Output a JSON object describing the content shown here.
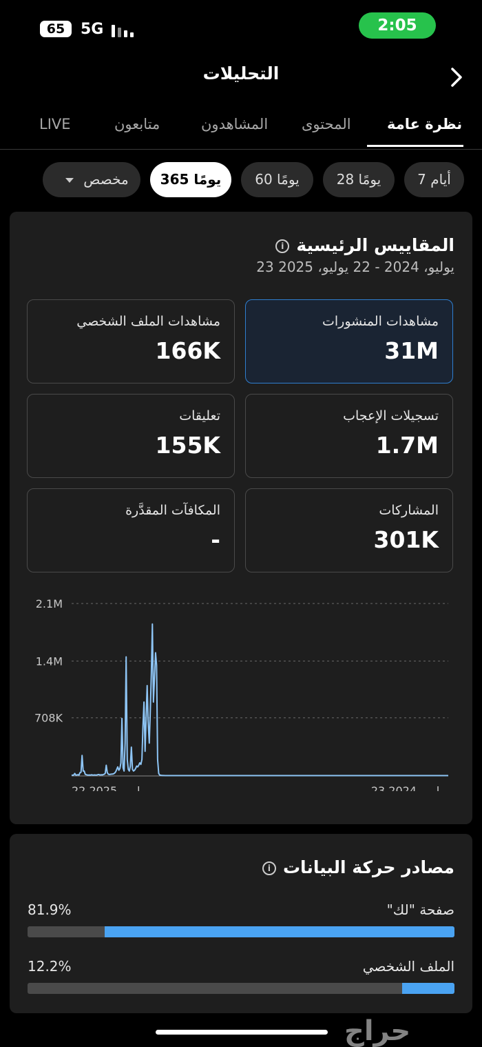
{
  "status_bar": {
    "battery": "65",
    "network": "5G",
    "time": "2:05"
  },
  "header": {
    "title": "التحليلات"
  },
  "tabs": [
    {
      "label": "نظرة عامة",
      "active": true
    },
    {
      "label": "المحتوى"
    },
    {
      "label": "المشاهدون"
    },
    {
      "label": "متابعون"
    },
    {
      "label": "LIVE"
    }
  ],
  "ranges": [
    {
      "label": "7 أيام"
    },
    {
      "label": "28 يومًا"
    },
    {
      "label": "60 يومًا"
    },
    {
      "label": "365 يومًا",
      "active": true
    },
    {
      "label": "مخصص"
    }
  ],
  "key_metrics": {
    "title": "المقاييس الرئيسية",
    "date_range": "23 يوليو، 2024 - 22 يوليو، 2025",
    "items": [
      {
        "label": "مشاهدات المنشورات",
        "value": "31M",
        "selected": true
      },
      {
        "label": "مشاهدات الملف الشخصي",
        "value": "166K"
      },
      {
        "label": "تسجيلات الإعجاب",
        "value": "1.7M"
      },
      {
        "label": "تعليقات",
        "value": "155K"
      },
      {
        "label": "المشاركات",
        "value": "301K"
      },
      {
        "label": "المكافآت المقدَّرة",
        "value": "-"
      }
    ]
  },
  "chart_data": {
    "type": "line",
    "series": [
      {
        "values": [
          8000,
          9000,
          10000,
          30000,
          10000,
          12000,
          15000,
          10000,
          40000,
          45000,
          250000,
          60000,
          60000,
          20000,
          15000,
          12000,
          10000,
          12000,
          10000,
          14000,
          12000,
          10000,
          13000,
          10000,
          12000,
          15000,
          18000,
          12000,
          14000,
          13000,
          16000,
          20000,
          30000,
          130000,
          40000,
          22000,
          18000,
          20000,
          22000,
          23000,
          26000,
          35000,
          50000,
          80000,
          110000,
          70000,
          90000,
          160000,
          700000,
          100000,
          60000,
          400000,
          1450000,
          200000,
          80000,
          60000,
          120000,
          350000,
          80000,
          60000,
          70000,
          90000,
          120000,
          110000,
          130000,
          160000,
          140000,
          200000,
          600000,
          900000,
          300000,
          700000,
          1100000,
          650000,
          400000,
          800000,
          1250000,
          1850000,
          900000,
          1200000,
          1500000,
          1350000,
          200000,
          30000,
          10000,
          8000,
          6000,
          5000,
          5000,
          4000,
          4000,
          4000,
          4000,
          4000,
          4000,
          4000,
          4000,
          4000,
          4000,
          4000,
          4000,
          4000,
          4000,
          4000,
          4000,
          4000,
          4000,
          4000,
          4000,
          4000,
          4000,
          4000,
          4000,
          4000,
          4000,
          4000,
          4000,
          4000,
          4000,
          4000,
          4000,
          4000,
          4000,
          4000,
          4000,
          4000,
          4000,
          4000,
          4000,
          4000,
          4000,
          4000,
          4000,
          4000,
          4000,
          4000,
          4000,
          4000,
          4000,
          4000,
          4000,
          4000,
          4000,
          4000,
          4000,
          4000,
          4000,
          4000,
          4000,
          4000,
          4000,
          4000,
          4000,
          4000,
          4000,
          4000,
          4000,
          4000,
          4000,
          4000,
          4000,
          4000,
          4000,
          4000,
          4000,
          4000,
          4000,
          4000,
          4000,
          4000,
          4000,
          4000,
          4000,
          4000,
          4000,
          4000,
          4000,
          4000,
          4000,
          4000,
          4000,
          4000,
          4000,
          4000,
          4000,
          4000,
          4000,
          4000,
          4000,
          4000,
          4000,
          4000,
          4000,
          4000,
          4000,
          4000,
          4000,
          4000,
          4000,
          4000,
          4000,
          4000,
          4000,
          4000,
          4000,
          4000,
          4000,
          4000,
          4000,
          4000,
          4000,
          4000,
          4000,
          4000,
          4000,
          4000,
          4000,
          4000,
          4000,
          4000,
          4000,
          4000,
          4000,
          4000,
          4000,
          4000,
          4000,
          4000,
          4000,
          4000,
          4000,
          4000,
          4000,
          4000,
          4000,
          4000,
          4000,
          4000,
          4000,
          4000,
          4000,
          4000,
          4000,
          4000,
          4000,
          4000,
          4000,
          4000,
          4000,
          4000,
          4000,
          4000,
          4000,
          4000,
          4000,
          4000,
          4000,
          4000,
          4000,
          4000,
          4000,
          4000,
          4000,
          4000,
          4000,
          4000,
          4000,
          4000,
          4000,
          4000,
          4000,
          4000,
          4000,
          4000,
          4000,
          4000,
          4000,
          4000,
          4000,
          4000,
          4000,
          4000,
          4000,
          4000,
          4000,
          4000,
          4000,
          4000,
          4000,
          4000,
          4000,
          4000,
          4000,
          4000,
          4000,
          4000,
          4000,
          4000,
          4000,
          4000,
          4000,
          4000,
          4000,
          4000,
          4000,
          4000,
          4000,
          4000,
          4000,
          4000,
          4000,
          4000,
          4000,
          4000,
          4000,
          4000,
          4000,
          4000,
          4000,
          4000,
          4000,
          4000,
          4000,
          4000,
          4000,
          4000,
          4000,
          4000,
          4000,
          4000,
          4000,
          4000,
          4000,
          4000,
          4000,
          4000,
          4000,
          4000,
          4000,
          4000,
          4000,
          4000,
          4000,
          4000,
          4000,
          4000,
          4000,
          4000,
          4000,
          4000,
          4000,
          4000,
          4000,
          4000,
          4000,
          4000,
          4000,
          4000,
          4000,
          4000
        ]
      }
    ],
    "y_ticks": [
      "2.1M",
      "1.4M",
      "708K"
    ],
    "y_tick_values": [
      2100000,
      1400000,
      708000
    ],
    "ylim": [
      0,
      2100000
    ],
    "x_tick_labels": [
      "22 2025 ، يوليو",
      "23 2024 ، يوليو"
    ],
    "x_reversed": true,
    "grid": true,
    "line_color": "#8ec5f5"
  },
  "traffic_sources": {
    "title": "مصادر حركة البيانات",
    "items": [
      {
        "label": "صفحة \"لك\"",
        "percent": "81.9%",
        "value": 81.9
      },
      {
        "label": "الملف الشخصي",
        "percent": "12.2%",
        "value": 12.2
      }
    ]
  },
  "watermark": "حراج"
}
